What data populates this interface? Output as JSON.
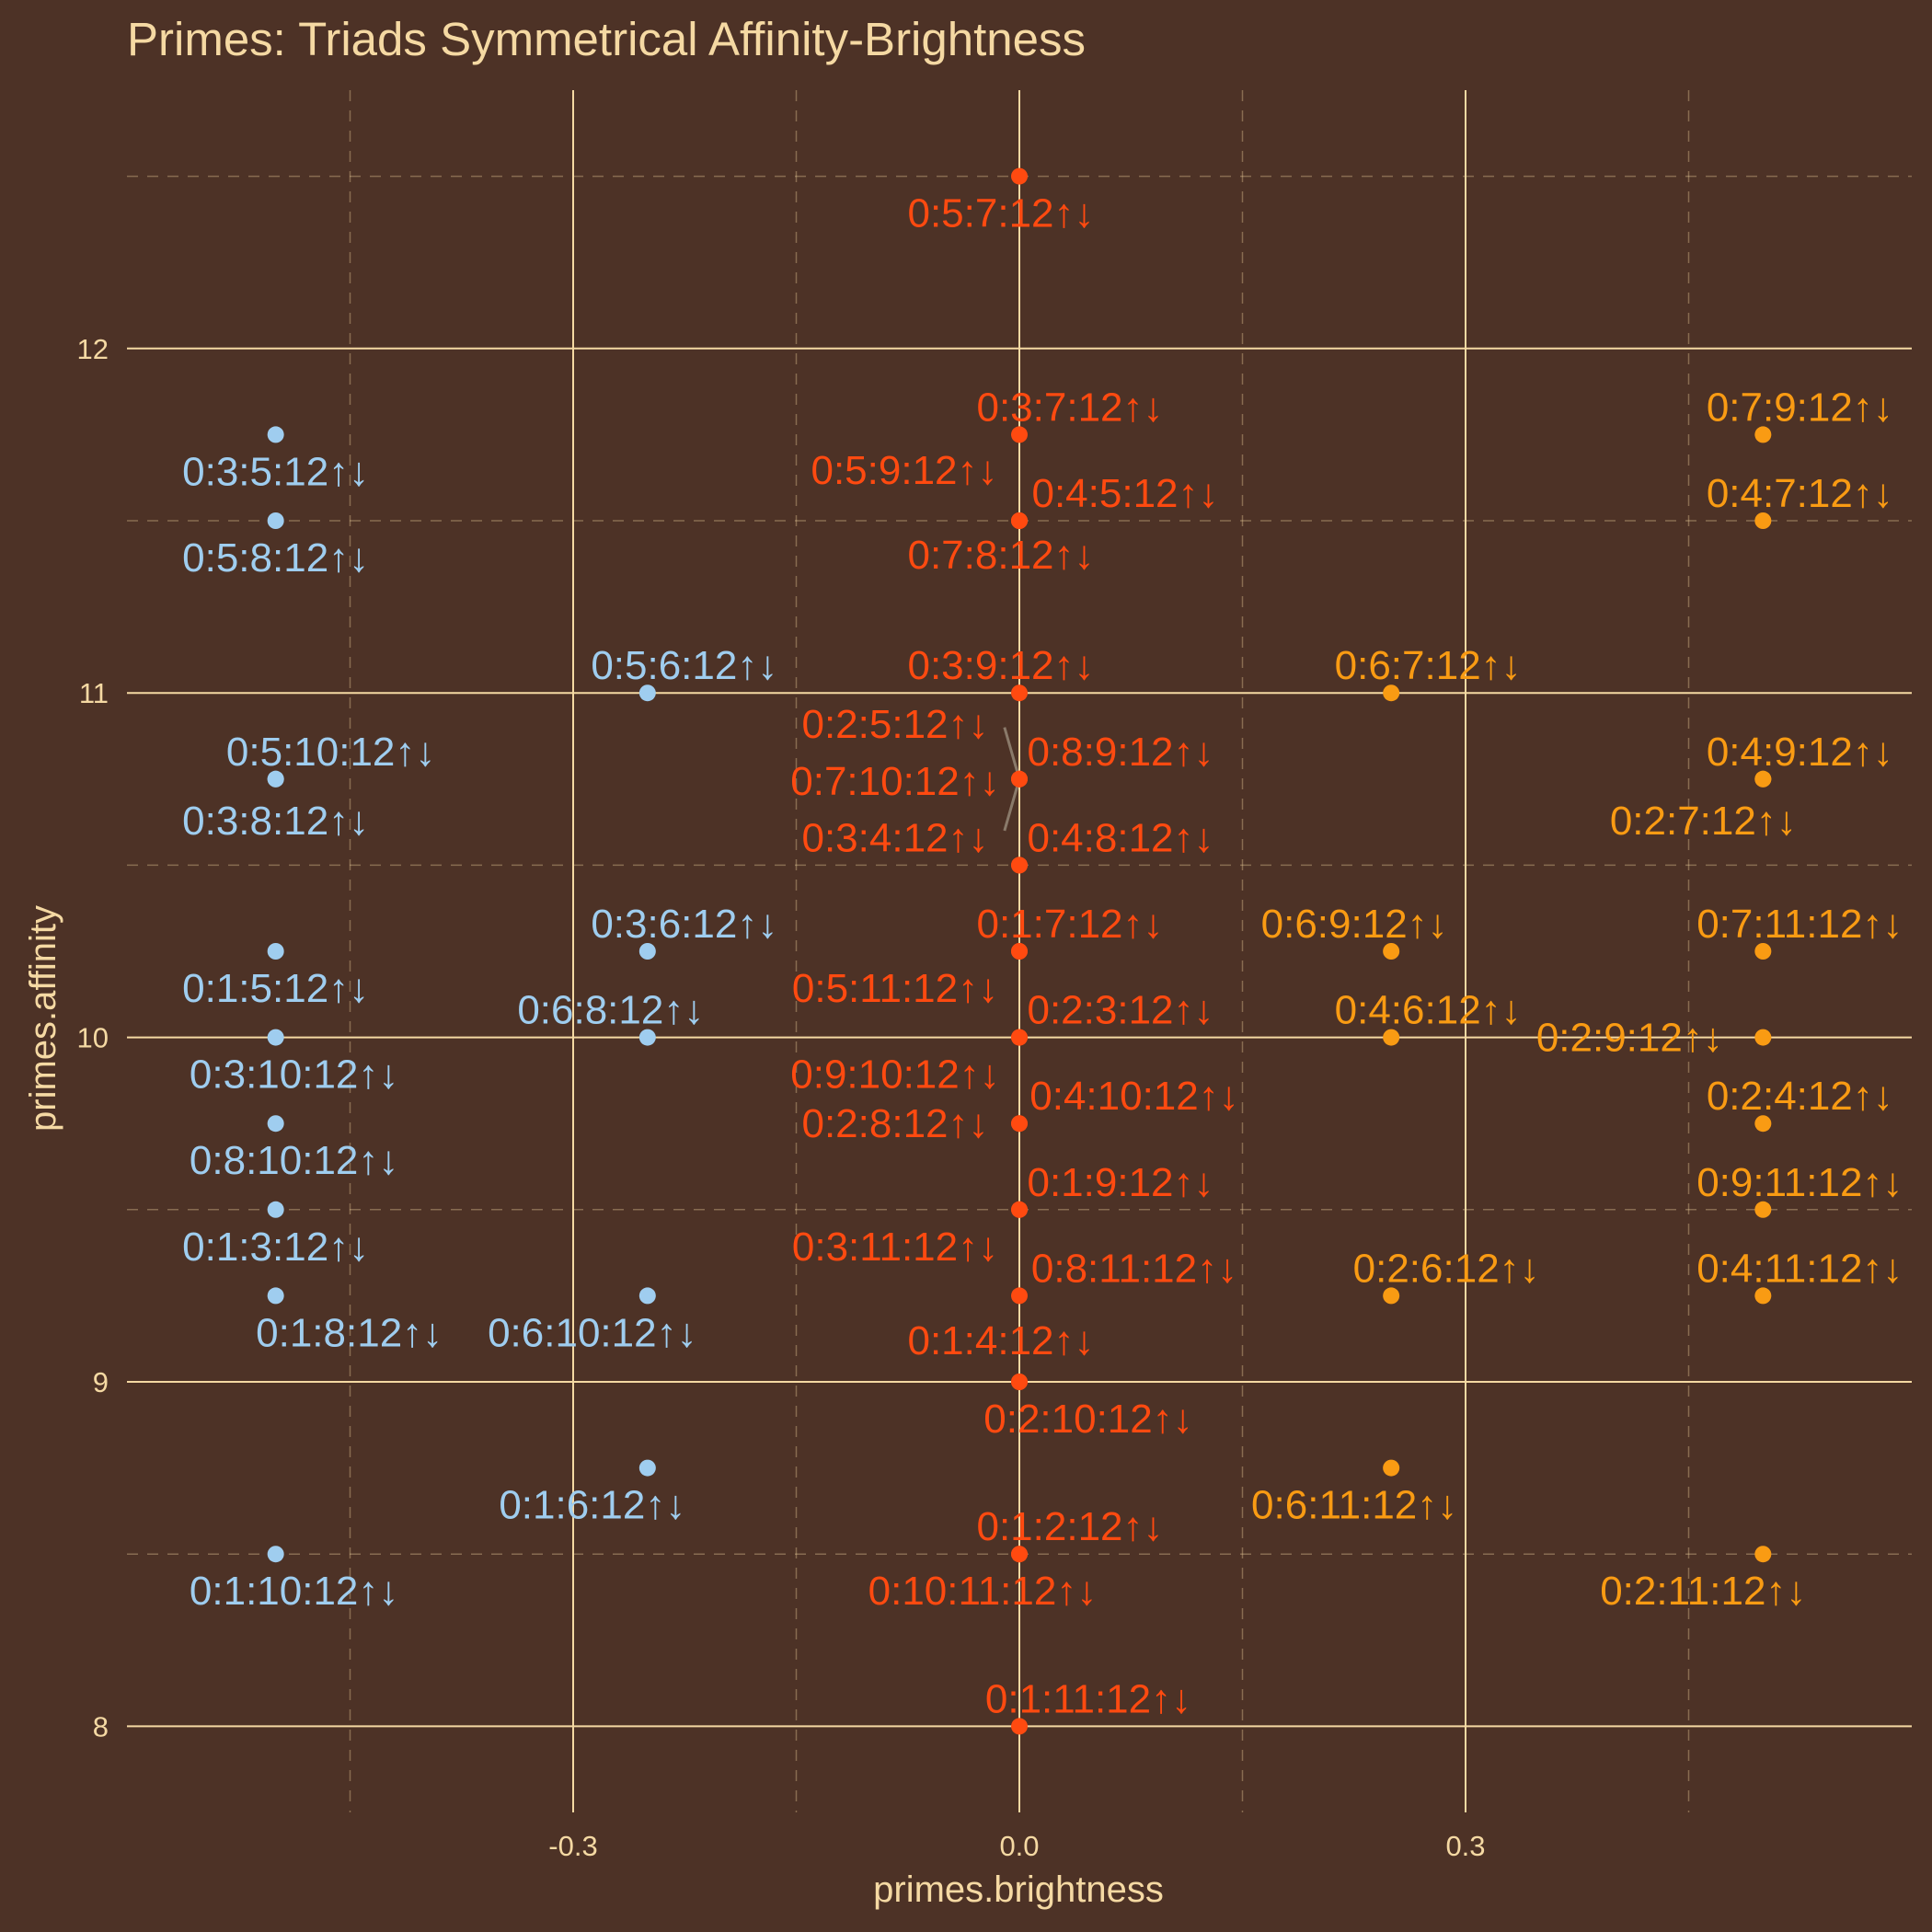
{
  "chart_data": {
    "type": "scatter",
    "title": "Primes: Triads Symmetrical Affinity-Brightness",
    "xlabel": "primes.brightness",
    "ylabel": "primes.affinity",
    "xlim": [
      -0.6,
      0.6
    ],
    "ylim": [
      7.75,
      12.75
    ],
    "xticks": [
      -0.3,
      0.0,
      0.3
    ],
    "xtick_labels": [
      "-0.3",
      "0.0",
      "0.3"
    ],
    "yticks": [
      8,
      9,
      10,
      11,
      12
    ],
    "ytick_labels": [
      "8",
      "9",
      "10",
      "11",
      "12"
    ],
    "grid": true,
    "legend": "none",
    "colors": {
      "background": "#4d3226",
      "grid": "#f5d9a3",
      "text": "#f5d9a3",
      "negative": "#9fcdef",
      "neutral": "#ff4a10",
      "positive": "#f99b13"
    },
    "series": [
      {
        "color": "#9fcdef",
        "points": [
          {
            "x": -0.5,
            "y": 11.75,
            "label": "0:3:5:12↑↓"
          },
          {
            "x": -0.5,
            "y": 11.5,
            "label": "0:5:8:12↑↓"
          },
          {
            "x": -0.5,
            "y": 10.75,
            "label": "0:5:10:12↑↓"
          },
          {
            "x": -0.5,
            "y": 10.75,
            "label": "0:3:8:12↑↓"
          },
          {
            "x": -0.5,
            "y": 10.25,
            "label": "0:1:5:12↑↓"
          },
          {
            "x": -0.5,
            "y": 10.0,
            "label": "0:3:10:12↑↓"
          },
          {
            "x": -0.5,
            "y": 9.75,
            "label": "0:8:10:12↑↓"
          },
          {
            "x": -0.5,
            "y": 9.5,
            "label": "0:1:3:12↑↓"
          },
          {
            "x": -0.5,
            "y": 9.25,
            "label": "0:1:8:12↑↓"
          },
          {
            "x": -0.5,
            "y": 8.5,
            "label": "0:1:10:12↑↓"
          },
          {
            "x": -0.25,
            "y": 11.0,
            "label": "0:5:6:12↑↓"
          },
          {
            "x": -0.25,
            "y": 10.25,
            "label": "0:3:6:12↑↓"
          },
          {
            "x": -0.25,
            "y": 10.0,
            "label": "0:6:8:12↑↓"
          },
          {
            "x": -0.25,
            "y": 9.25,
            "label": "0:6:10:12↑↓"
          },
          {
            "x": -0.25,
            "y": 8.75,
            "label": "0:1:6:12↑↓"
          }
        ]
      },
      {
        "color": "#ff4a10",
        "points": [
          {
            "x": 0.0,
            "y": 12.5,
            "label": "0:5:7:12↑↓"
          },
          {
            "x": 0.0,
            "y": 11.75,
            "label": "0:3:7:12↑↓"
          },
          {
            "x": 0.0,
            "y": 11.5,
            "label": "0:5:9:12↑↓"
          },
          {
            "x": 0.0,
            "y": 11.5,
            "label": "0:4:5:12↑↓"
          },
          {
            "x": 0.0,
            "y": 11.5,
            "label": "0:7:8:12↑↓"
          },
          {
            "x": 0.0,
            "y": 11.0,
            "label": "0:3:9:12↑↓"
          },
          {
            "x": 0.0,
            "y": 10.75,
            "label": "0:2:5:12↑↓"
          },
          {
            "x": 0.0,
            "y": 10.75,
            "label": "0:8:9:12↑↓"
          },
          {
            "x": 0.0,
            "y": 10.75,
            "label": "0:7:10:12↑↓"
          },
          {
            "x": 0.0,
            "y": 10.5,
            "label": "0:3:4:12↑↓"
          },
          {
            "x": 0.0,
            "y": 10.5,
            "label": "0:4:8:12↑↓"
          },
          {
            "x": 0.0,
            "y": 10.25,
            "label": "0:1:7:12↑↓"
          },
          {
            "x": 0.0,
            "y": 10.25,
            "label": "0:5:11:12↑↓"
          },
          {
            "x": 0.0,
            "y": 10.0,
            "label": "0:2:3:12↑↓"
          },
          {
            "x": 0.0,
            "y": 10.0,
            "label": "0:9:10:12↑↓"
          },
          {
            "x": 0.0,
            "y": 9.75,
            "label": "0:4:10:12↑↓"
          },
          {
            "x": 0.0,
            "y": 9.75,
            "label": "0:2:8:12↑↓"
          },
          {
            "x": 0.0,
            "y": 9.5,
            "label": "0:1:9:12↑↓"
          },
          {
            "x": 0.0,
            "y": 9.5,
            "label": "0:3:11:12↑↓"
          },
          {
            "x": 0.0,
            "y": 9.25,
            "label": "0:8:11:12↑↓"
          },
          {
            "x": 0.0,
            "y": 9.0,
            "label": "0:1:4:12↑↓"
          },
          {
            "x": 0.0,
            "y": 9.0,
            "label": "0:2:10:12↑↓"
          },
          {
            "x": 0.0,
            "y": 8.5,
            "label": "0:1:2:12↑↓"
          },
          {
            "x": 0.0,
            "y": 8.5,
            "label": "0:10:11:12↑↓"
          },
          {
            "x": 0.0,
            "y": 8.0,
            "label": "0:1:11:12↑↓"
          }
        ]
      },
      {
        "color": "#f99b13",
        "points": [
          {
            "x": 0.25,
            "y": 11.0,
            "label": "0:6:7:12↑↓"
          },
          {
            "x": 0.25,
            "y": 10.25,
            "label": "0:6:9:12↑↓"
          },
          {
            "x": 0.25,
            "y": 10.0,
            "label": "0:4:6:12↑↓"
          },
          {
            "x": 0.25,
            "y": 9.25,
            "label": "0:2:6:12↑↓"
          },
          {
            "x": 0.25,
            "y": 8.75,
            "label": "0:6:11:12↑↓"
          },
          {
            "x": 0.5,
            "y": 11.75,
            "label": "0:7:9:12↑↓"
          },
          {
            "x": 0.5,
            "y": 11.5,
            "label": "0:4:7:12↑↓"
          },
          {
            "x": 0.5,
            "y": 10.75,
            "label": "0:4:9:12↑↓"
          },
          {
            "x": 0.5,
            "y": 10.75,
            "label": "0:2:7:12↑↓"
          },
          {
            "x": 0.5,
            "y": 10.25,
            "label": "0:7:11:12↑↓"
          },
          {
            "x": 0.5,
            "y": 10.0,
            "label": "0:2:9:12↑↓"
          },
          {
            "x": 0.5,
            "y": 9.75,
            "label": "0:2:4:12↑↓"
          },
          {
            "x": 0.5,
            "y": 9.5,
            "label": "0:9:11:12↑↓"
          },
          {
            "x": 0.5,
            "y": 9.25,
            "label": "0:4:11:12↑↓"
          },
          {
            "x": 0.5,
            "y": 8.5,
            "label": "0:2:11:12↑↓"
          }
        ]
      }
    ]
  }
}
